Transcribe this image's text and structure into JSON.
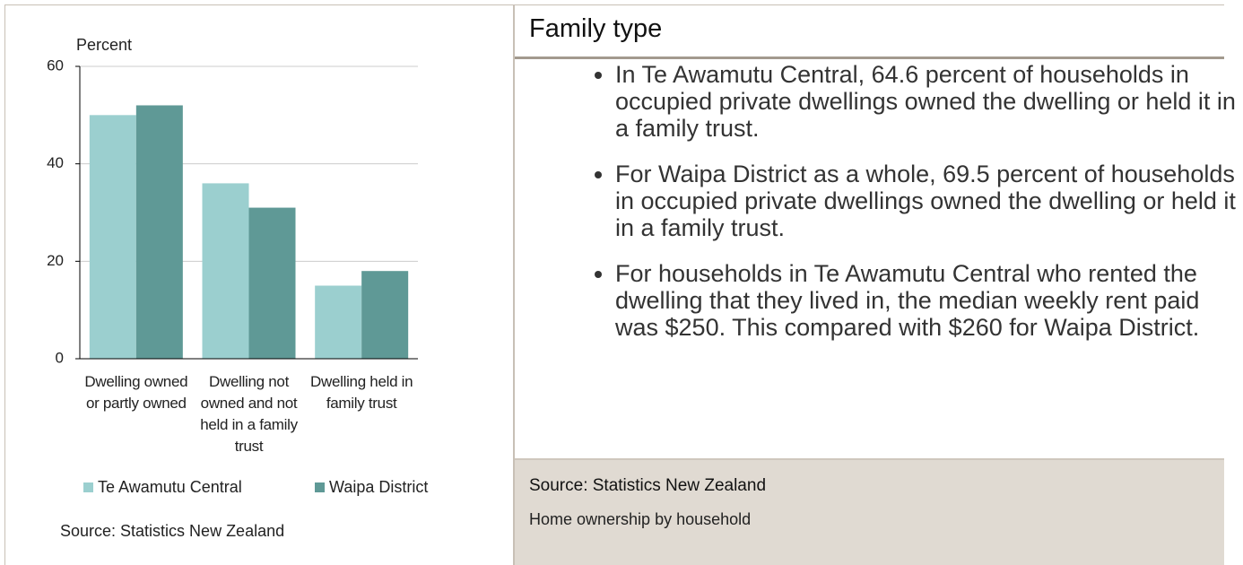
{
  "chart_data": {
    "type": "bar",
    "y_label": "Percent",
    "categories": [
      "Dwelling owned or partly owned",
      "Dwelling not owned and not held in a family trust",
      "Dwelling held in family trust"
    ],
    "series": [
      {
        "name": "Te Awamutu Central",
        "color": "#9bcfcf",
        "values": [
          50,
          36,
          15
        ]
      },
      {
        "name": "Waipa District",
        "color": "#5f9996",
        "values": [
          52,
          31,
          18
        ]
      }
    ],
    "ylim": [
      0,
      60
    ],
    "yticks": [
      0,
      20,
      40,
      60
    ],
    "grid": true,
    "legend": "bottom",
    "source": "Source: Statistics New Zealand"
  },
  "panel": {
    "title": "Family type",
    "bullets": [
      "In Te Awamutu Central, 64.6 percent of households in occupied private dwellings owned the dwelling or held it in a family trust.",
      "For Waipa District as a whole, 69.5 percent of households in occupied private dwellings owned the dwelling or held it in a family trust.",
      "For households in Te Awamutu Central who rented the dwelling that they lived in, the median weekly rent paid was $250. This compared with $260 for Waipa District."
    ],
    "source": "Source: Statistics New Zealand",
    "caption": "Home ownership by household"
  }
}
